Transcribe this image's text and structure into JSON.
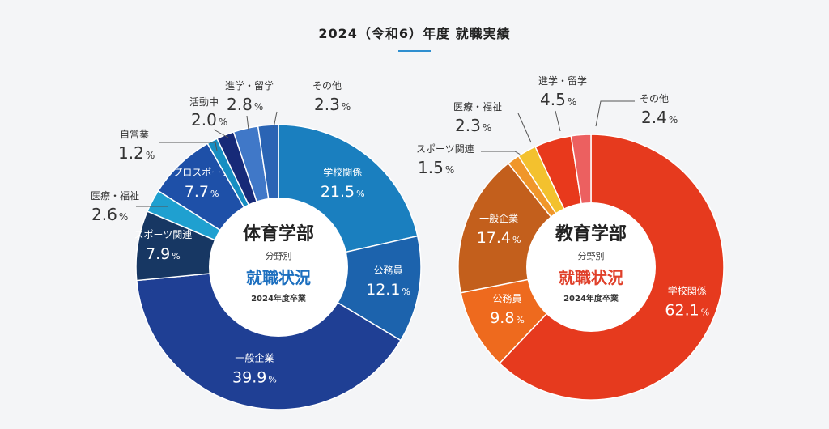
{
  "page": {
    "title": "2024（令和6）年度 就職実績",
    "accent": "#2f8fd0"
  },
  "chart_data": [
    {
      "type": "pie",
      "unit": "%",
      "center": {
        "title": "体育学部",
        "subtitle": "分野別",
        "status": "就職状況",
        "year": "2024年度卒業",
        "status_color": "#1c6fbf"
      },
      "slices": [
        {
          "label": "学校関係",
          "value": 21.5,
          "color": "#1a7fbf",
          "label_mode": "inside"
        },
        {
          "label": "公務員",
          "value": 12.1,
          "color": "#1c63ad",
          "label_mode": "inside"
        },
        {
          "label": "一般企業",
          "value": 39.9,
          "color": "#1f3f94",
          "label_mode": "inside"
        },
        {
          "label": "スポーツ関連",
          "value": 7.9,
          "color": "#173763",
          "label_mode": "inside"
        },
        {
          "label": "医療・福祉",
          "value": 2.6,
          "color": "#1fa0d0",
          "label_mode": "outside"
        },
        {
          "label": "プロスポーツ",
          "value": 7.7,
          "color": "#1e50a8",
          "label_mode": "inside"
        },
        {
          "label": "自営業",
          "value": 1.2,
          "color": "#178ec2",
          "label_mode": "outside"
        },
        {
          "label": "活動中",
          "value": 2.0,
          "color": "#172a78",
          "label_mode": "outside"
        },
        {
          "label": "進学・留学",
          "value": 2.8,
          "color": "#4078c8",
          "label_mode": "outside"
        },
        {
          "label": "その他",
          "value": 2.3,
          "color": "#2a64b4",
          "label_mode": "outside"
        }
      ]
    },
    {
      "type": "pie",
      "unit": "%",
      "center": {
        "title": "教育学部",
        "subtitle": "分野別",
        "status": "就職状況",
        "year": "2024年度卒業",
        "status_color": "#e0402a"
      },
      "slices": [
        {
          "label": "学校関係",
          "value": 62.1,
          "color": "#e63a1e",
          "label_mode": "inside"
        },
        {
          "label": "公務員",
          "value": 9.8,
          "color": "#ee6a1e",
          "label_mode": "inside"
        },
        {
          "label": "一般企業",
          "value": 17.4,
          "color": "#c35f1c",
          "label_mode": "inside"
        },
        {
          "label": "スポーツ関連",
          "value": 1.5,
          "color": "#f0962a",
          "label_mode": "outside"
        },
        {
          "label": "医療・福祉",
          "value": 2.3,
          "color": "#f3c12e",
          "label_mode": "outside"
        },
        {
          "label": "進学・留学",
          "value": 4.5,
          "color": "#e8391c",
          "label_mode": "outside"
        },
        {
          "label": "その他",
          "value": 2.4,
          "color": "#ec6060",
          "label_mode": "outside"
        }
      ]
    }
  ]
}
